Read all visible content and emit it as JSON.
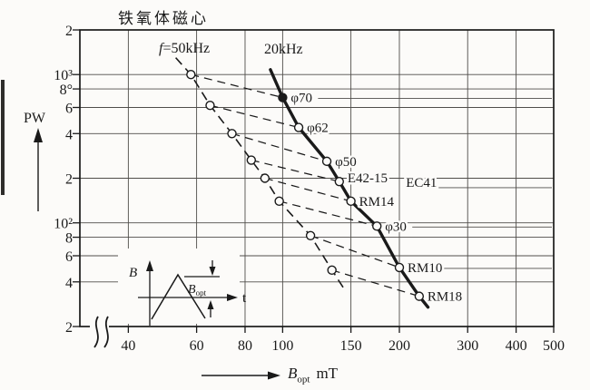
{
  "title": "铁氧体磁心",
  "y_axis": {
    "label": "PW"
  },
  "x_axis": {
    "symbol": "B",
    "subscript": "opt",
    "unit": "mT"
  },
  "series_labels": {
    "f50": {
      "prefix": "f",
      "rest": "=50kHz"
    },
    "f20": "20kHz"
  },
  "inset": {
    "y_label": "B",
    "dim_symbol": "B",
    "dim_sub": "opt",
    "x_label": "t"
  },
  "chart_data": {
    "type": "line",
    "title": "铁氧体磁心",
    "xlabel": "B_opt (mT)",
    "ylabel": "PW",
    "x_scale": "log",
    "y_scale": "log",
    "xlim": [
      30,
      500
    ],
    "ylim": [
      20,
      2000
    ],
    "grid": true,
    "x_ticks": [
      40,
      60,
      80,
      100,
      150,
      200,
      300,
      400,
      500
    ],
    "x_tick_labels": [
      "40",
      "60",
      "80",
      "100",
      "150",
      "200",
      "300",
      "400",
      "500"
    ],
    "y_ticks": [
      2000,
      1000,
      800,
      600,
      400,
      200,
      100,
      80,
      60,
      40,
      20
    ],
    "y_tick_labels": [
      "2",
      "10³",
      "8°",
      "6",
      "4",
      "2",
      "10²",
      "8",
      "6",
      "4",
      "2"
    ],
    "series": [
      {
        "name": "f=50kHz",
        "line": "dashed",
        "points": [
          [
            53,
            1300
          ],
          [
            58,
            1000
          ],
          [
            65,
            620
          ],
          [
            74,
            400
          ],
          [
            83,
            265
          ],
          [
            90,
            200
          ],
          [
            98,
            140
          ],
          [
            118,
            82
          ],
          [
            134,
            48
          ],
          [
            144,
            36
          ]
        ]
      },
      {
        "name": "20kHz",
        "line": "solid",
        "points": [
          [
            93,
            1080
          ],
          [
            100,
            700
          ],
          [
            110,
            440
          ],
          [
            130,
            260
          ],
          [
            140,
            190
          ],
          [
            150,
            140
          ],
          [
            175,
            95
          ],
          [
            200,
            50
          ],
          [
            225,
            32
          ],
          [
            237,
            27
          ]
        ]
      }
    ],
    "cores": [
      {
        "label": "φ70",
        "b50": 58,
        "pw50": 1000,
        "b20": 100,
        "pw20": 700,
        "filled": true,
        "leader": true
      },
      {
        "label": "φ62",
        "b50": 65,
        "pw50": 620,
        "b20": 110,
        "pw20": 440
      },
      {
        "label": "φ50",
        "b50": 74,
        "pw50": 400,
        "b20": 130,
        "pw20": 260
      },
      {
        "label": "E42-15",
        "b50": 83,
        "pw50": 265,
        "b20": 140,
        "pw20": 190,
        "dy": 1
      },
      {
        "label": "RM14",
        "b50": 90,
        "pw50": 200,
        "b20": 150,
        "pw20": 140
      },
      {
        "label": "φ30",
        "b50": 98,
        "pw50": 140,
        "b20": 175,
        "pw20": 95,
        "leader": true
      },
      {
        "label": "RM10",
        "b50": 118,
        "pw50": 82,
        "b20": 200,
        "pw20": 50,
        "leader": true
      },
      {
        "label": "RM18",
        "b50": 134,
        "pw50": 48,
        "b20": 225,
        "pw20": 32
      }
    ],
    "annotations": [
      {
        "text": "EC41",
        "b": 208,
        "pw": 175,
        "leader": true
      }
    ]
  }
}
